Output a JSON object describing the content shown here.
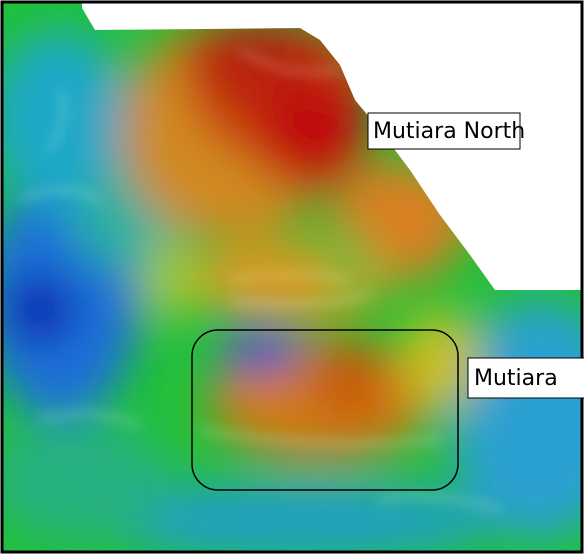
{
  "annotations": [
    {
      "label": "Mutiara North"
    },
    {
      "label": "Mutiara"
    }
  ]
}
